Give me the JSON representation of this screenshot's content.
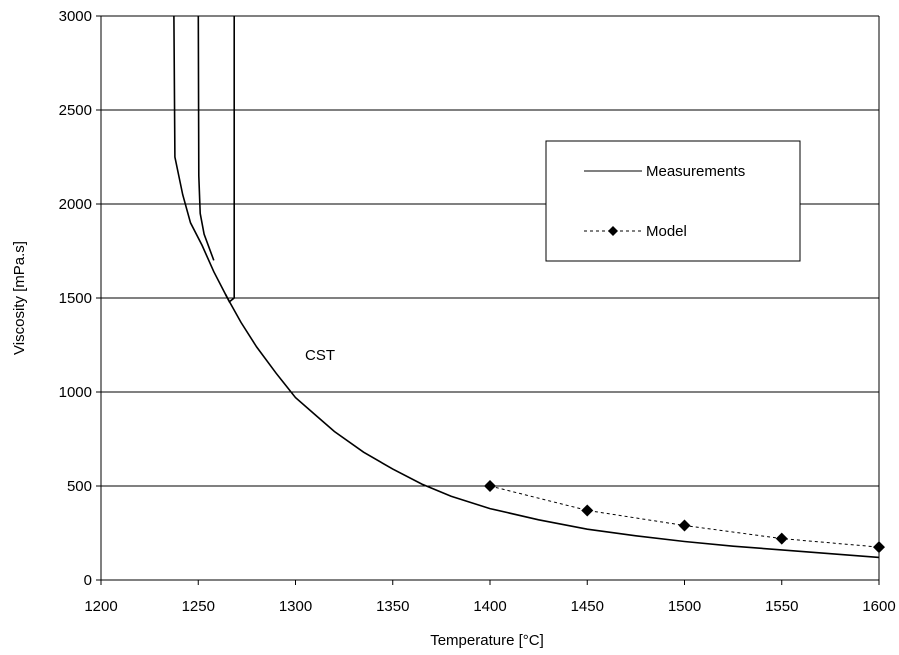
{
  "chart_data": {
    "type": "line",
    "xlabel": "Temperature [°C]",
    "ylabel": "Viscosity [mPa.s]",
    "xlim": [
      1200,
      1600
    ],
    "ylim": [
      0,
      3000
    ],
    "xticks": [
      "1200",
      "1250",
      "1300",
      "1350",
      "1400",
      "1450",
      "1500",
      "1550",
      "1600"
    ],
    "yticks": [
      "0",
      "500",
      "1000",
      "1500",
      "2000",
      "2500",
      "3000"
    ],
    "grid": "horizontal",
    "legend_position": "top-right",
    "annotation": "CST",
    "series": [
      {
        "name": "Measurements",
        "style": "solid",
        "color": "#000000",
        "x": [
          1237.5,
          1238,
          1242,
          1246,
          1252,
          1258,
          1265,
          1272,
          1280,
          1290,
          1300,
          1310,
          1320,
          1335,
          1350,
          1365,
          1380,
          1400,
          1425,
          1450,
          1475,
          1500,
          1525,
          1550,
          1575,
          1600
        ],
        "y": [
          3000,
          2250,
          2050,
          1900,
          1780,
          1640,
          1500,
          1370,
          1240,
          1100,
          970,
          880,
          790,
          680,
          590,
          510,
          445,
          380,
          320,
          270,
          235,
          205,
          180,
          160,
          140,
          120
        ]
      },
      {
        "name": "",
        "style": "solid",
        "color": "#000000",
        "x": [
          1250,
          1250.3,
          1251,
          1253,
          1258
        ],
        "y": [
          3000,
          2150,
          1950,
          1840,
          1700
        ]
      },
      {
        "name": "",
        "style": "solid",
        "color": "#000000",
        "x": [
          1268.5,
          1268.5,
          1266,
          1264
        ],
        "y": [
          3000,
          1500,
          1480,
          1520
        ]
      },
      {
        "name": "Model",
        "style": "dashed",
        "marker": "diamond",
        "color": "#000000",
        "x": [
          1400,
          1450,
          1500,
          1550,
          1600
        ],
        "y": [
          500,
          370,
          290,
          220,
          175
        ]
      }
    ]
  }
}
